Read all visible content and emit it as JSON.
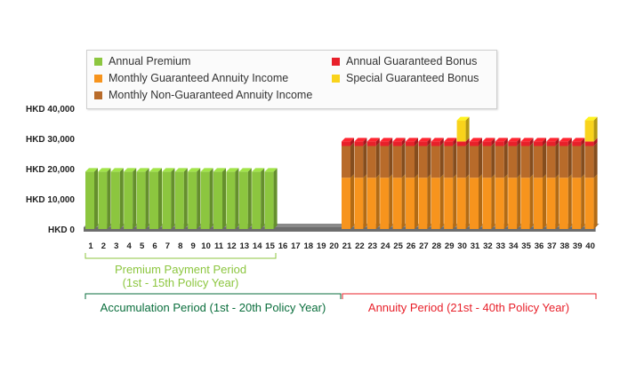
{
  "legend": {
    "items": [
      {
        "label": "Annual Premium",
        "color": "#8cc63f"
      },
      {
        "label": "Monthly Guaranteed Annuity Income",
        "color": "#f7941d"
      },
      {
        "label": "Monthly Non-Guaranteed Annuity Income",
        "color": "#b86b2a"
      },
      {
        "label": "Annual Guaranteed Bonus",
        "color": "#e8202a"
      },
      {
        "label": "Special Guaranteed Bonus",
        "color": "#f9d31b"
      }
    ]
  },
  "periods": {
    "premium_payment": {
      "line1": "Premium Payment Period",
      "line2": "(1st - 15th Policy Year)",
      "color": "#8cc63f"
    },
    "accumulation": {
      "label": "Accumulation Period (1st - 20th Policy Year)",
      "color": "#0a6e3c"
    },
    "annuity": {
      "label": "Annuity Period (21st - 40th Policy Year)",
      "color": "#e8202a"
    }
  },
  "chart_data": {
    "type": "bar",
    "stacked": true,
    "x": [
      1,
      2,
      3,
      4,
      5,
      6,
      7,
      8,
      9,
      10,
      11,
      12,
      13,
      14,
      15,
      16,
      17,
      18,
      19,
      20,
      21,
      22,
      23,
      24,
      25,
      26,
      27,
      28,
      29,
      30,
      31,
      32,
      33,
      34,
      35,
      36,
      37,
      38,
      39,
      40
    ],
    "y_ticks": [
      "HKD 0",
      "HKD 10,000",
      "HKD 20,000",
      "HKD 30,000",
      "HKD 40,000"
    ],
    "y_tick_values": [
      0,
      10000,
      20000,
      30000,
      40000
    ],
    "ylim": [
      0,
      40000
    ],
    "series": [
      {
        "name": "Annual Premium",
        "color": "#8cc63f",
        "values": [
          19000,
          19000,
          19000,
          19000,
          19000,
          19000,
          19000,
          19000,
          19000,
          19000,
          19000,
          19000,
          19000,
          19000,
          19000,
          0,
          0,
          0,
          0,
          0,
          0,
          0,
          0,
          0,
          0,
          0,
          0,
          0,
          0,
          0,
          0,
          0,
          0,
          0,
          0,
          0,
          0,
          0,
          0,
          0
        ]
      },
      {
        "name": "Monthly Guaranteed Annuity Income",
        "color": "#f7941d",
        "values": [
          0,
          0,
          0,
          0,
          0,
          0,
          0,
          0,
          0,
          0,
          0,
          0,
          0,
          0,
          0,
          0,
          0,
          0,
          0,
          0,
          17000,
          17000,
          17000,
          17000,
          17000,
          17000,
          17000,
          17000,
          17000,
          17000,
          17000,
          17000,
          17000,
          17000,
          17000,
          17000,
          17000,
          17000,
          17000,
          17000
        ]
      },
      {
        "name": "Monthly Non-Guaranteed Annuity Income",
        "color": "#b86b2a",
        "values": [
          0,
          0,
          0,
          0,
          0,
          0,
          0,
          0,
          0,
          0,
          0,
          0,
          0,
          0,
          0,
          0,
          0,
          0,
          0,
          0,
          10500,
          10500,
          10500,
          10500,
          10500,
          10500,
          10500,
          10500,
          10500,
          10500,
          10500,
          10500,
          10500,
          10500,
          10500,
          10500,
          10500,
          10500,
          10500,
          10500
        ]
      },
      {
        "name": "Annual Guaranteed Bonus",
        "color": "#e8202a",
        "values": [
          0,
          0,
          0,
          0,
          0,
          0,
          0,
          0,
          0,
          0,
          0,
          0,
          0,
          0,
          0,
          0,
          0,
          0,
          0,
          0,
          1500,
          1500,
          1500,
          1500,
          1500,
          1500,
          1500,
          1500,
          1500,
          1500,
          1500,
          1500,
          1500,
          1500,
          1500,
          1500,
          1500,
          1500,
          1500,
          1500
        ]
      },
      {
        "name": "Special Guaranteed Bonus",
        "color": "#f9d31b",
        "values": [
          0,
          0,
          0,
          0,
          0,
          0,
          0,
          0,
          0,
          0,
          0,
          0,
          0,
          0,
          0,
          0,
          0,
          0,
          0,
          0,
          0,
          0,
          0,
          0,
          0,
          0,
          0,
          0,
          0,
          7000,
          0,
          0,
          0,
          0,
          0,
          0,
          0,
          0,
          0,
          7000
        ]
      }
    ]
  }
}
